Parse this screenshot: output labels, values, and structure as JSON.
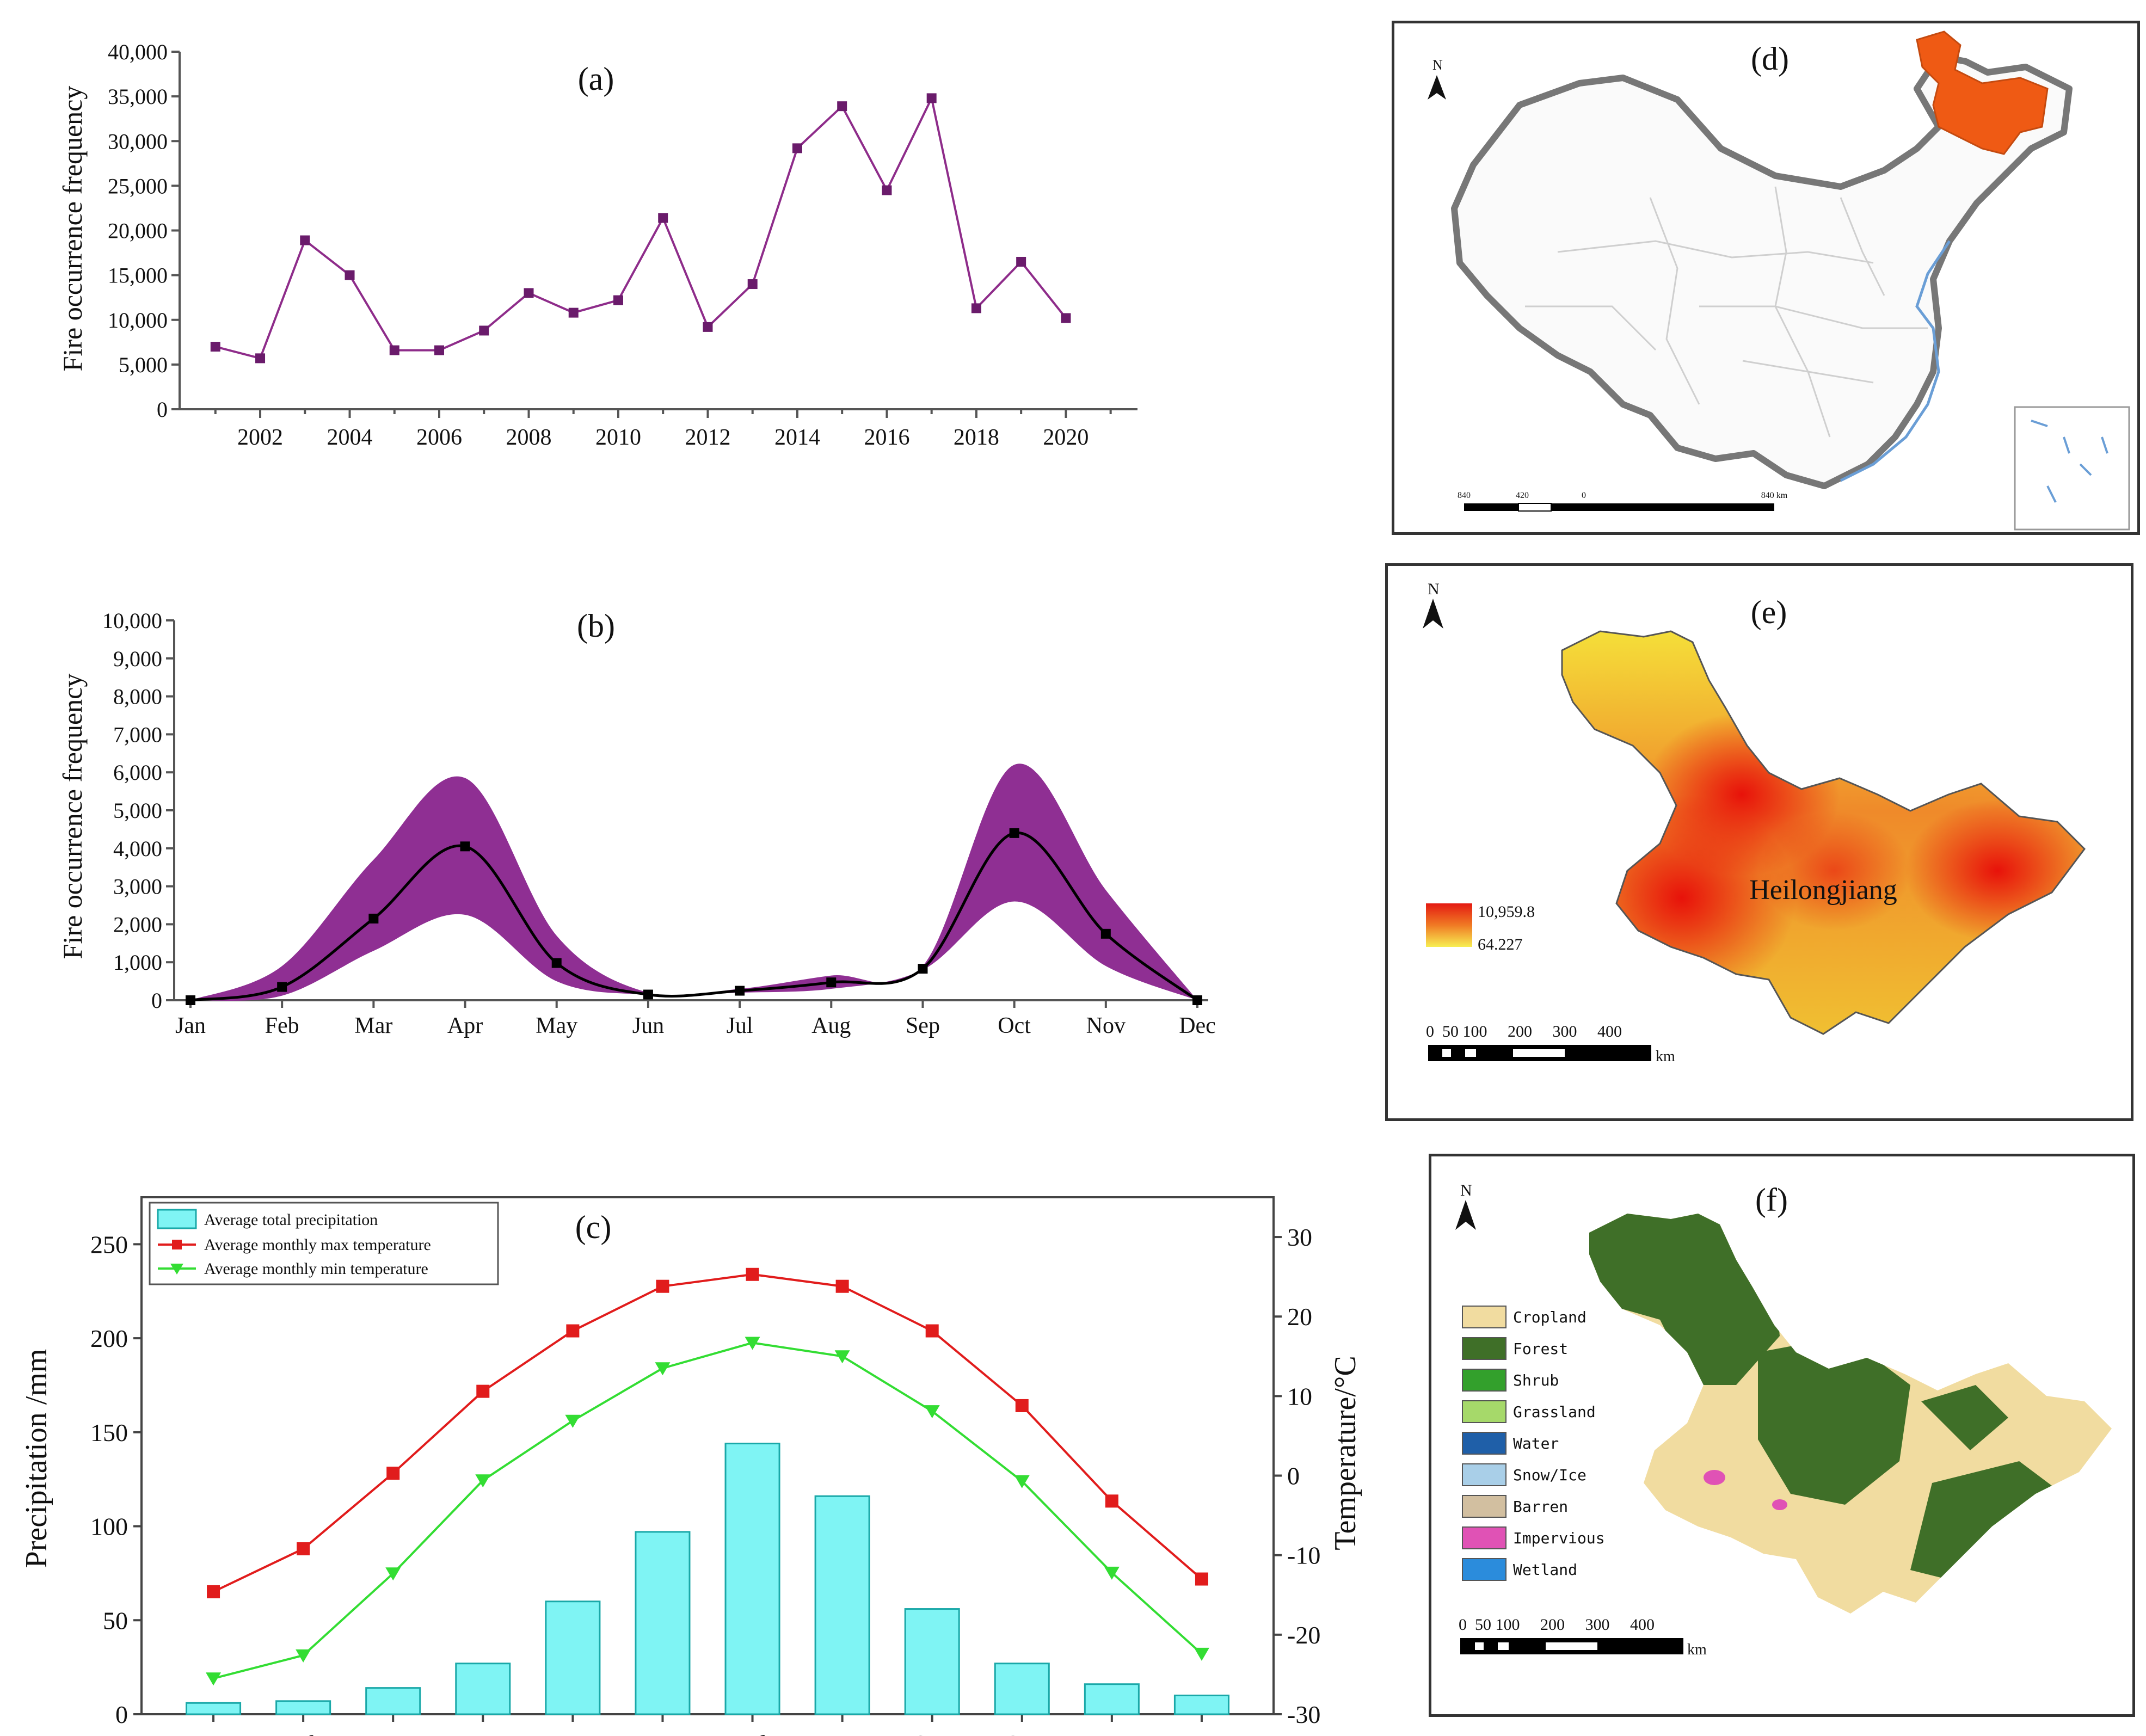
{
  "colors": {
    "purple": "#8e2c8a",
    "purple_band": "#8f2f93",
    "cyan": "#7ff4f4",
    "red": "#e11c1c",
    "green": "#33dd33",
    "orange": "#ef5a14"
  },
  "chart_data": [
    {
      "type": "line",
      "panel_label": "(a)",
      "title": "",
      "xlabel": "",
      "ylabel": "Fire occurrence frequency",
      "x": [
        2001,
        2002,
        2003,
        2004,
        2005,
        2006,
        2007,
        2008,
        2009,
        2010,
        2011,
        2012,
        2013,
        2014,
        2015,
        2016,
        2017,
        2018,
        2019,
        2020
      ],
      "values": [
        7000,
        5700,
        18900,
        15000,
        6600,
        6600,
        8800,
        13000,
        10800,
        12200,
        21400,
        9200,
        14000,
        29200,
        33900,
        24500,
        34800,
        11300,
        16500,
        10200
      ],
      "xlim": [
        2000.2,
        2021.6
      ],
      "ylim": [
        0,
        40000
      ],
      "xticks": [
        "2002",
        "2004",
        "2006",
        "2008",
        "2010",
        "2012",
        "2014",
        "2016",
        "2018",
        "2020"
      ],
      "yticks": [
        "0",
        "5,000",
        "10,000",
        "15,000",
        "20,000",
        "25,000",
        "30,000",
        "35,000",
        "40,000"
      ]
    },
    {
      "type": "area",
      "panel_label": "(b)",
      "title": "",
      "xlabel": "",
      "ylabel": "Fire occurrence frequency",
      "categories": [
        "Jan",
        "Feb",
        "Mar",
        "Apr",
        "May",
        "Jun",
        "Jul",
        "Aug",
        "Sep",
        "Oct",
        "Nov",
        "Dec"
      ],
      "series": [
        {
          "name": "mean",
          "values": [
            0,
            350,
            2150,
            4050,
            980,
            150,
            250,
            470,
            830,
            4400,
            1750,
            0
          ]
        },
        {
          "name": "upper",
          "values": [
            0,
            900,
            3700,
            5850,
            1700,
            200,
            300,
            650,
            900,
            6200,
            2900,
            0
          ]
        },
        {
          "name": "lower",
          "values": [
            0,
            120,
            1300,
            2250,
            500,
            150,
            200,
            300,
            800,
            2600,
            900,
            0
          ]
        }
      ],
      "ylim": [
        0,
        10000
      ],
      "yticks": [
        "0",
        "1,000",
        "2,000",
        "3,000",
        "4,000",
        "5,000",
        "6,000",
        "7,000",
        "8,000",
        "9,000",
        "10,000"
      ]
    },
    {
      "type": "bar",
      "panel_label": "(c)",
      "title": "",
      "xlabel": "",
      "ylabel": "Precipitation /mm",
      "ylabel_right": "Temperature/°C",
      "categories": [
        "Jan",
        "Feb",
        "Mar",
        "Apr",
        "May",
        "Jun",
        "Jul",
        "Aug",
        "Sep",
        "Oct",
        "Nov",
        "Dec"
      ],
      "series": [
        {
          "name": "Average total precipitation",
          "axis": "left",
          "kind": "bar",
          "values": [
            6,
            7,
            14,
            27,
            60,
            97,
            144,
            116,
            56,
            27,
            16,
            10
          ]
        },
        {
          "name": "Average monthly max temperature",
          "axis": "right",
          "kind": "line",
          "values": [
            -14.6,
            -9.2,
            0.3,
            10.6,
            18.2,
            23.8,
            25.3,
            23.8,
            18.2,
            8.8,
            -3.2,
            -13.0
          ]
        },
        {
          "name": "Average monthly min temperature",
          "axis": "right",
          "kind": "line",
          "values": [
            -25.5,
            -22.6,
            -12.3,
            -0.6,
            6.9,
            13.5,
            16.7,
            15.0,
            8.1,
            -0.7,
            -12.2,
            -22.4
          ]
        }
      ],
      "ylim": [
        0,
        275
      ],
      "ylim_right": [
        -30,
        35
      ],
      "yticks": [
        "0",
        "50",
        "100",
        "150",
        "200",
        "250"
      ],
      "yticks_right": [
        "-30",
        "-20",
        "-10",
        "0",
        "10",
        "20",
        "30"
      ],
      "legend": "top-left"
    }
  ],
  "maps": {
    "d": {
      "label": "(d)",
      "north": "N",
      "scale_labels": [
        "840",
        "420",
        "0",
        "840 km"
      ]
    },
    "e": {
      "label": "(e)",
      "north": "N",
      "region_name": "Heilongjiang",
      "legend_high": "10,959.8",
      "legend_low": "64.227",
      "scale_numbers": "0  50 100     200     300     400",
      "scale_unit": "km"
    },
    "f": {
      "label": "(f)",
      "north": "N",
      "legend": [
        {
          "label": "Cropland",
          "color": "#f1dca0"
        },
        {
          "label": "Forest",
          "color": "#3f6f28"
        },
        {
          "label": "Shrub",
          "color": "#33a02c"
        },
        {
          "label": "Grassland",
          "color": "#a6d96a"
        },
        {
          "label": "Water",
          "color": "#1f5fa8"
        },
        {
          "label": "Snow/Ice",
          "color": "#a9cfe8"
        },
        {
          "label": "Barren",
          "color": "#d2bfa0"
        },
        {
          "label": "Impervious",
          "color": "#e052b5"
        },
        {
          "label": "Wetland",
          "color": "#2b8cdc"
        }
      ],
      "scale_numbers": "0  50 100     200     300     400",
      "scale_unit": "km"
    }
  }
}
